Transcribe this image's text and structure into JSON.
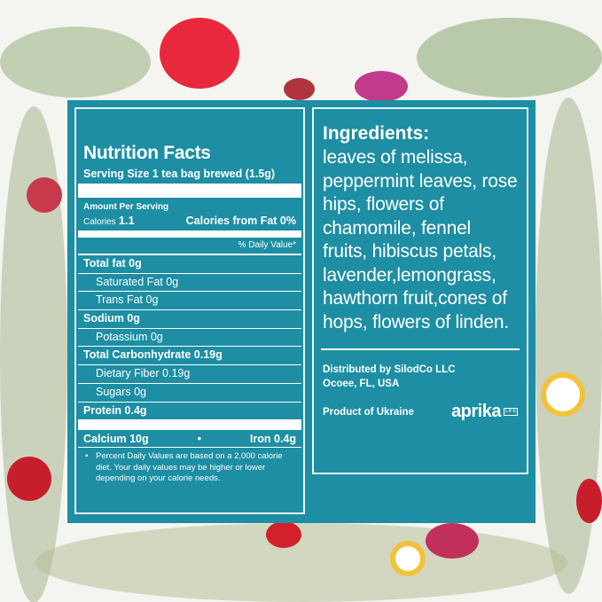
{
  "nutrition": {
    "title": "Nutrition Facts",
    "serving_size": "Serving Size 1 tea bag brewed (1.5g)",
    "amount_per_serving": "Amount Per Serving",
    "calories_label": "Calories",
    "calories_value": "1.1",
    "calories_from_fat": "Calories from Fat 0%",
    "daily_value_header": "% Daily Value*",
    "rows": [
      {
        "label": "Total fat  0g",
        "style": "b"
      },
      {
        "label": "Saturated Fat  0g",
        "style": "i"
      },
      {
        "label": "Trans Fat  0g",
        "style": "i"
      },
      {
        "label": "Sodium 0g",
        "style": "b"
      },
      {
        "label": "Potassium  0g",
        "style": "i"
      },
      {
        "label": "Total Carbonhydrate  0.19g",
        "style": "b"
      },
      {
        "label": "Dietary Fiber 0.19g",
        "style": "i"
      },
      {
        "label": "Sugars 0g",
        "style": "i"
      },
      {
        "label": "Protein  0.4g",
        "style": "b"
      }
    ],
    "calcium": "Calcium  10g",
    "dot": "•",
    "iron": "Iron  0.4g",
    "footnote_bullet": "•",
    "footnote": "Percent Daily Values are based on a 2,000 calorie diet.  Your daily values may be higher or lower depending on your calorie needs."
  },
  "ingredients": {
    "title": "Ingredients:",
    "text": "leaves of melissa, peppermint leaves, rose hips, flowers of chamomile, fennel fruits, hibiscus petals, lavender,lemongrass, hawthorn fruit,cones of hops, flowers of linden."
  },
  "distribution": {
    "line1": "Distributed by SilodCo LLC",
    "line2": "Ocoee, FL, USA",
    "origin": "Product of Ukraine"
  },
  "logo": {
    "brand": "aprika",
    "sub": "LIFE"
  },
  "colors": {
    "panel": "#1d8ea3",
    "text": "#ffffff"
  }
}
